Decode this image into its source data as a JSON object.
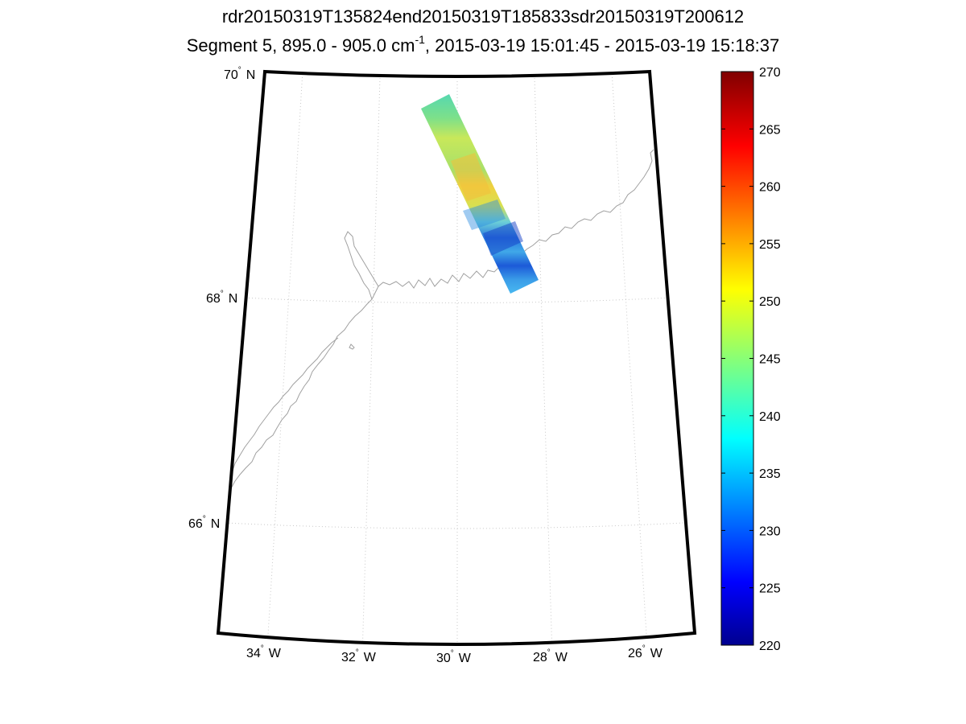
{
  "title": {
    "line1": "rdr20150319T135824end20150319T185833sdr20150319T200612",
    "segment": "Segment 5, 895.0 - 905.0 cm",
    "exponent": "-1",
    "time_range": ", 2015-03-19 15:01:45 - 2015-03-19 15:18:37"
  },
  "map": {
    "projection": "conic",
    "lat_range": [
      64.9,
      70.0
    ],
    "lon_range": [
      -35.0,
      -25.0
    ],
    "lat_labels": [
      {
        "deg": "70",
        "hem": "N"
      },
      {
        "deg": "68",
        "hem": "N"
      },
      {
        "deg": "66",
        "hem": "N"
      }
    ],
    "lon_labels": [
      {
        "deg": "34",
        "hem": "W"
      },
      {
        "deg": "32",
        "hem": "W"
      },
      {
        "deg": "30",
        "hem": "W"
      },
      {
        "deg": "28",
        "hem": "W"
      },
      {
        "deg": "26",
        "hem": "W"
      }
    ],
    "degree_symbol": "°"
  },
  "colorbar": {
    "min": 220,
    "max": 270,
    "ticks": [
      "220",
      "225",
      "230",
      "235",
      "240",
      "245",
      "250",
      "255",
      "260",
      "265",
      "270"
    ],
    "colormap": "jet"
  },
  "colors": {
    "frame": "#000000",
    "grid": "#c8c8c8",
    "coastline": "#a0a0a0"
  }
}
